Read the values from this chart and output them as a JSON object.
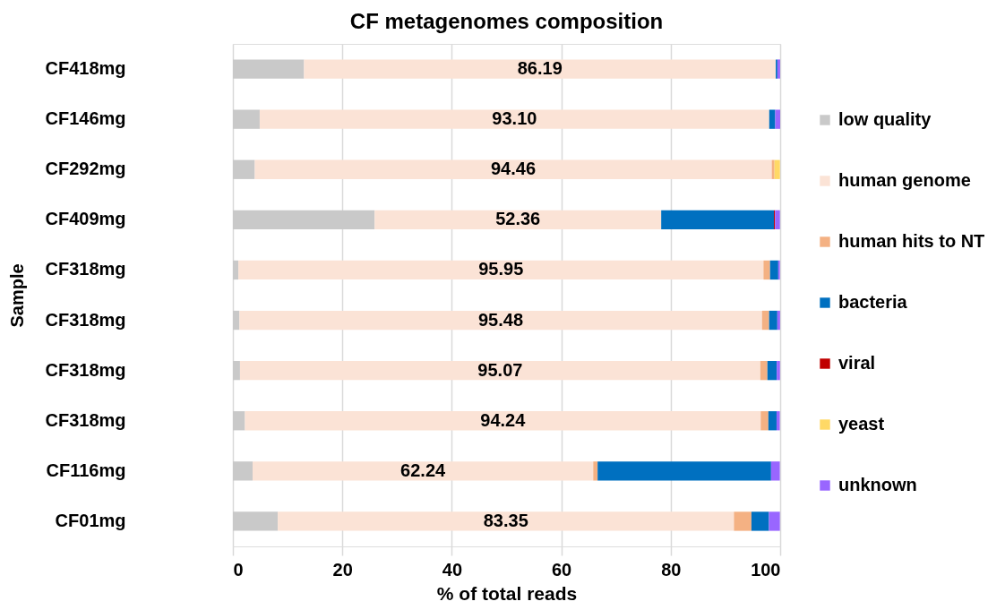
{
  "chart_data": {
    "type": "bar",
    "orientation": "horizontal",
    "stacked": true,
    "title": "CF metagenomes composition",
    "xlabel": "% of total reads",
    "ylabel": "Sample",
    "categories": [
      "CF418mg",
      "CF146mg",
      "CF292mg",
      "CF409mg",
      "CF318mg",
      "CF318mg",
      "CF318mg",
      "CF318mg",
      "CF116mg",
      "CF01mg"
    ],
    "xlim": [
      0,
      100
    ],
    "xticks": [
      0,
      20,
      40,
      60,
      80,
      100
    ],
    "grid": "x",
    "legend": "right",
    "series": [
      {
        "name": "low quality",
        "color": "#c9c9c9",
        "values": [
          13.0,
          4.9,
          4.0,
          25.9,
          1.0,
          1.2,
          1.3,
          2.2,
          3.6,
          8.2
        ]
      },
      {
        "name": "human genome",
        "color": "#fbe3d6",
        "values": [
          86.19,
          93.1,
          94.46,
          52.36,
          95.95,
          95.48,
          95.07,
          94.24,
          62.24,
          83.35
        ],
        "value_labels": [
          "86.19",
          "93.10",
          "94.46",
          "52.36",
          "95.95",
          "95.48",
          "95.07",
          "94.24",
          "62.24",
          "83.35"
        ]
      },
      {
        "name": "human hits to NT",
        "color": "#f4b183",
        "values": [
          null,
          null,
          0.5,
          null,
          1.2,
          1.3,
          1.3,
          1.4,
          0.8,
          3.2
        ]
      },
      {
        "name": "bacteria",
        "color": "#0070c0",
        "values": [
          0.3,
          1.1,
          null,
          20.6,
          1.5,
          1.5,
          1.7,
          1.5,
          31.7,
          3.2
        ]
      },
      {
        "name": "viral",
        "color": "#c00000",
        "values": [
          null,
          null,
          null,
          0.2,
          null,
          null,
          null,
          null,
          null,
          null
        ]
      },
      {
        "name": "yeast",
        "color": "#ffd966",
        "values": [
          null,
          null,
          1.0,
          null,
          null,
          null,
          null,
          null,
          null,
          null
        ]
      },
      {
        "name": "unknown",
        "color": "#9966ff",
        "values": [
          0.5,
          0.9,
          null,
          0.9,
          0.3,
          0.5,
          0.6,
          0.6,
          1.6,
          2.0
        ]
      }
    ]
  }
}
